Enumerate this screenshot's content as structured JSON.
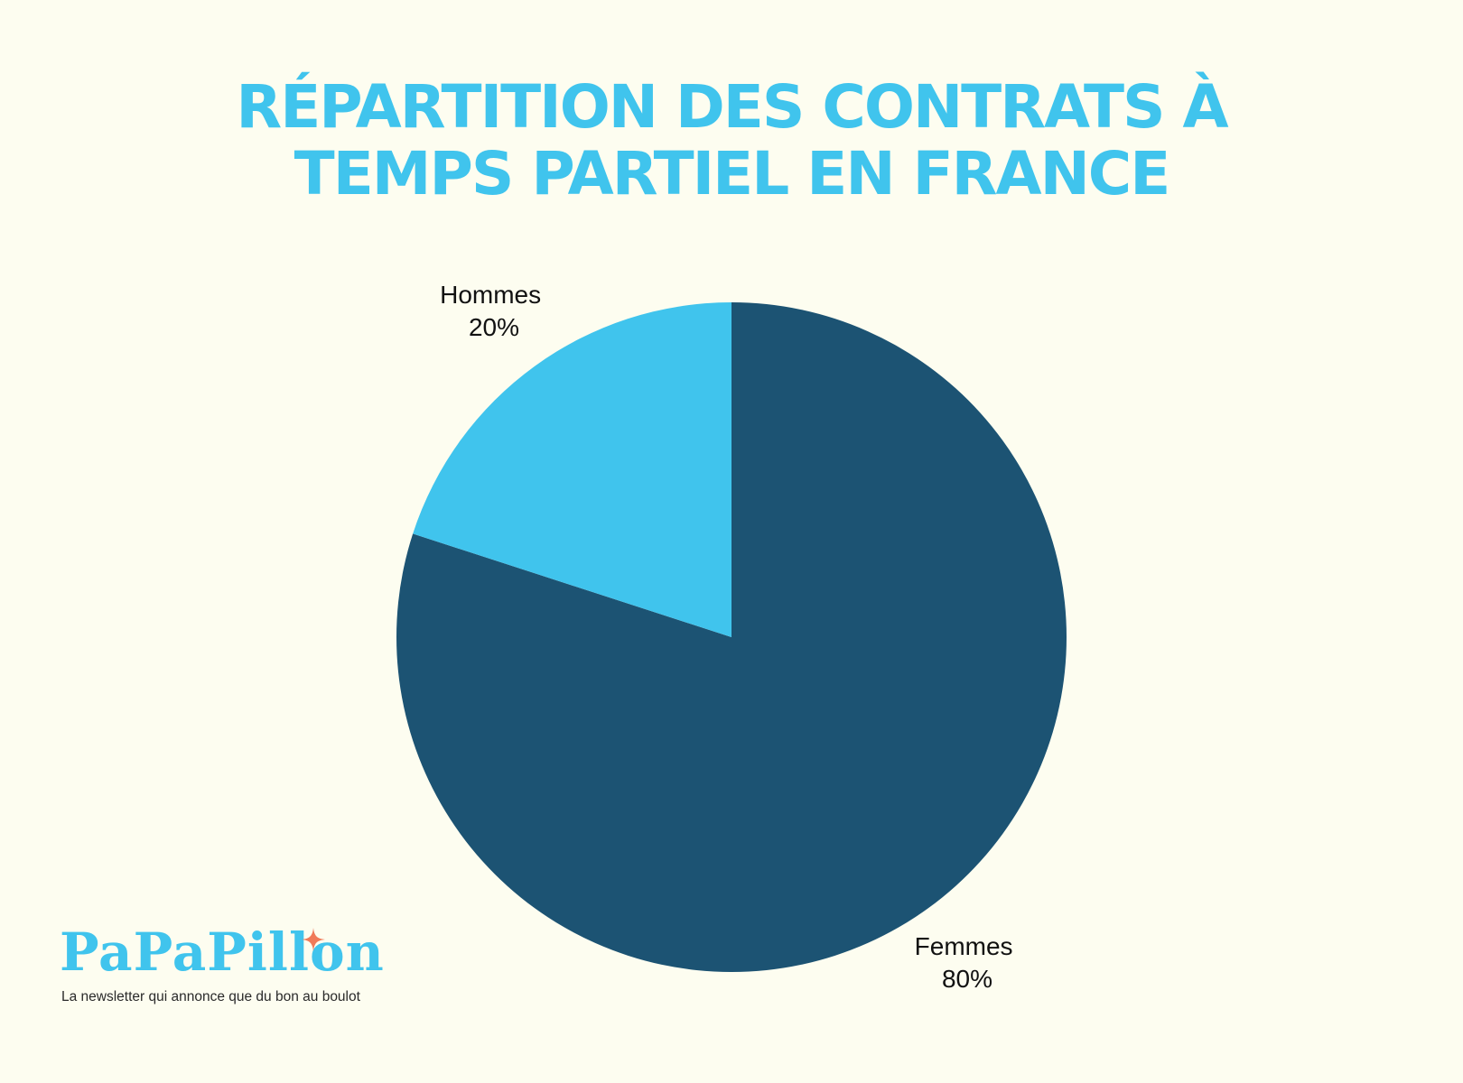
{
  "title_lines": [
    "RÉPARTITION DES CONTRATS À",
    "TEMPS PARTIEL EN FRANCE"
  ],
  "chart_data": {
    "type": "pie",
    "title": "RÉPARTITION DES CONTRATS À TEMPS PARTIEL EN FRANCE",
    "slices": [
      {
        "label": "Femmes",
        "value": 80,
        "value_label": "80%",
        "color": "#1c5373"
      },
      {
        "label": "Hommes",
        "value": 20,
        "value_label": "20%",
        "color": "#40c4ed"
      }
    ],
    "start": "12 o'clock, clockwise",
    "legend": "none (labels next to slices)"
  },
  "logo": {
    "wordmark": "PaPaPillon",
    "tagline": "La newsletter qui annonce que du bon au boulot",
    "color": "#40c4ed",
    "star_color": "#f07a5a",
    "star_icon": "four-point-star-icon"
  },
  "colors": {
    "background": "#fdfdf0",
    "title": "#40c4ed"
  }
}
